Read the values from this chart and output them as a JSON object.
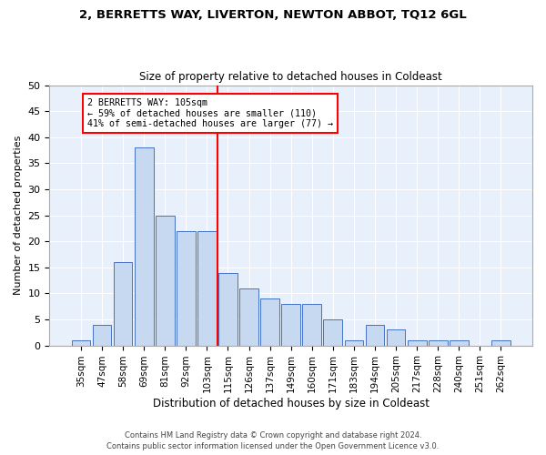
{
  "title1": "2, BERRETTS WAY, LIVERTON, NEWTON ABBOT, TQ12 6GL",
  "title2": "Size of property relative to detached houses in Coldeast",
  "xlabel": "Distribution of detached houses by size in Coldeast",
  "ylabel": "Number of detached properties",
  "categories": [
    "35sqm",
    "47sqm",
    "58sqm",
    "69sqm",
    "81sqm",
    "92sqm",
    "103sqm",
    "115sqm",
    "126sqm",
    "137sqm",
    "149sqm",
    "160sqm",
    "171sqm",
    "183sqm",
    "194sqm",
    "205sqm",
    "217sqm",
    "228sqm",
    "240sqm",
    "251sqm",
    "262sqm"
  ],
  "values": [
    1,
    4,
    16,
    38,
    25,
    22,
    22,
    14,
    11,
    9,
    8,
    8,
    5,
    1,
    4,
    3,
    1,
    1,
    1,
    0,
    1
  ],
  "bar_color": "#c6d9f1",
  "bar_edge_color": "#4472c4",
  "annotation_title": "2 BERRETTS WAY: 105sqm",
  "annotation_line1": "← 59% of detached houses are smaller (110)",
  "annotation_line2": "41% of semi-detached houses are larger (77) →",
  "ylim": [
    0,
    50
  ],
  "yticks": [
    0,
    5,
    10,
    15,
    20,
    25,
    30,
    35,
    40,
    45,
    50
  ],
  "footer1": "Contains HM Land Registry data © Crown copyright and database right 2024.",
  "footer2": "Contains public sector information licensed under the Open Government Licence v3.0.",
  "plot_bg": "#e8f0fb"
}
